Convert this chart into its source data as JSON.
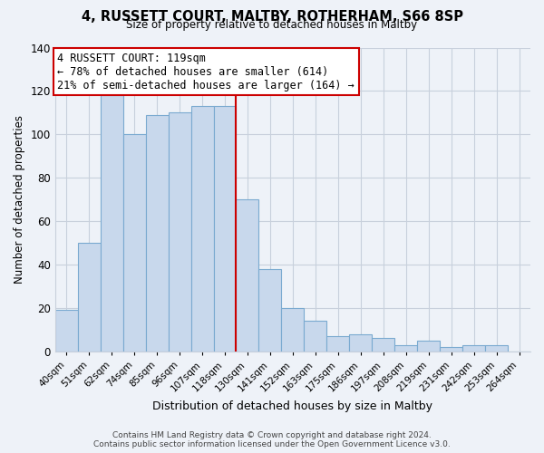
{
  "title": "4, RUSSETT COURT, MALTBY, ROTHERHAM, S66 8SP",
  "subtitle": "Size of property relative to detached houses in Maltby",
  "xlabel": "Distribution of detached houses by size in Maltby",
  "ylabel": "Number of detached properties",
  "bar_labels": [
    "40sqm",
    "51sqm",
    "62sqm",
    "74sqm",
    "85sqm",
    "96sqm",
    "107sqm",
    "118sqm",
    "130sqm",
    "141sqm",
    "152sqm",
    "163sqm",
    "175sqm",
    "186sqm",
    "197sqm",
    "208sqm",
    "219sqm",
    "231sqm",
    "242sqm",
    "253sqm",
    "264sqm"
  ],
  "bar_values": [
    19,
    50,
    118,
    100,
    109,
    110,
    113,
    113,
    70,
    38,
    20,
    14,
    7,
    8,
    6,
    3,
    5,
    2,
    3,
    3,
    0
  ],
  "bar_color": "#c8d8ec",
  "bar_edge_color": "#7aaad0",
  "highlight_index": 7,
  "highlight_line_color": "#cc0000",
  "annotation_text": "4 RUSSETT COURT: 119sqm\n← 78% of detached houses are smaller (614)\n21% of semi-detached houses are larger (164) →",
  "annotation_box_color": "#ffffff",
  "annotation_box_edge_color": "#cc0000",
  "ylim": [
    0,
    140
  ],
  "yticks": [
    0,
    20,
    40,
    60,
    80,
    100,
    120,
    140
  ],
  "grid_color": "#c8d0dc",
  "bg_color": "#eef2f8",
  "footer_line1": "Contains HM Land Registry data © Crown copyright and database right 2024.",
  "footer_line2": "Contains public sector information licensed under the Open Government Licence v3.0."
}
